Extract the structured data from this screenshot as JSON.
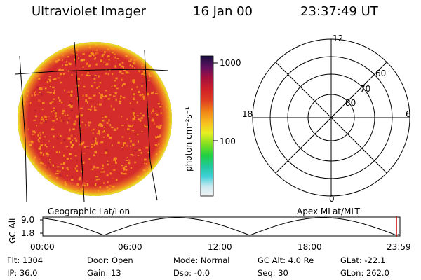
{
  "header": {
    "title": "Ultraviolet Imager",
    "date": "16 Jan 00",
    "time": "23:37:49 UT"
  },
  "colorbar": {
    "label": "photon cm⁻²s⁻¹",
    "ticks": [
      "1000",
      "100"
    ],
    "scale": "log"
  },
  "polar_plot": {
    "mlt_labels": {
      "top": "12",
      "left": "18",
      "right": "6",
      "bottom": "0"
    },
    "lat_labels": [
      "60",
      "70",
      "80"
    ]
  },
  "globe_label": "Geographic Lat/Lon",
  "polar_label": "Apex MLat/MLT",
  "altitude_plot": {
    "ylabel": "GC Alt",
    "yticks": [
      "9.0",
      "1.8"
    ],
    "xticks": [
      "00:00",
      "06:00",
      "12:00",
      "18:00",
      "23:59"
    ],
    "current_time_marker": "23:37:49"
  },
  "status": {
    "flt_label": "Flt:",
    "flt_value": "1304",
    "ip_label": "IP:",
    "ip_value": "36.0",
    "door_label": "Door:",
    "door_value": "Open",
    "gain_label": "Gain:",
    "gain_value": "13",
    "mode_label": "Mode:",
    "mode_value": "Normal",
    "dsp_label": "Dsp:",
    "dsp_value": "-0.0",
    "gcalt_label": "GC Alt:",
    "gcalt_value": "4.0 Re",
    "seq_label": "Seq:",
    "seq_value": "30",
    "glat_label": "GLat:",
    "glat_value": "-22.1",
    "glon_label": "GLon:",
    "glon_value": "262.0"
  },
  "colors": {
    "image_main": "#d42b2b",
    "image_speckle": "#f58a1e",
    "image_edge": "#f5e61e",
    "marker": "#cc0000"
  }
}
